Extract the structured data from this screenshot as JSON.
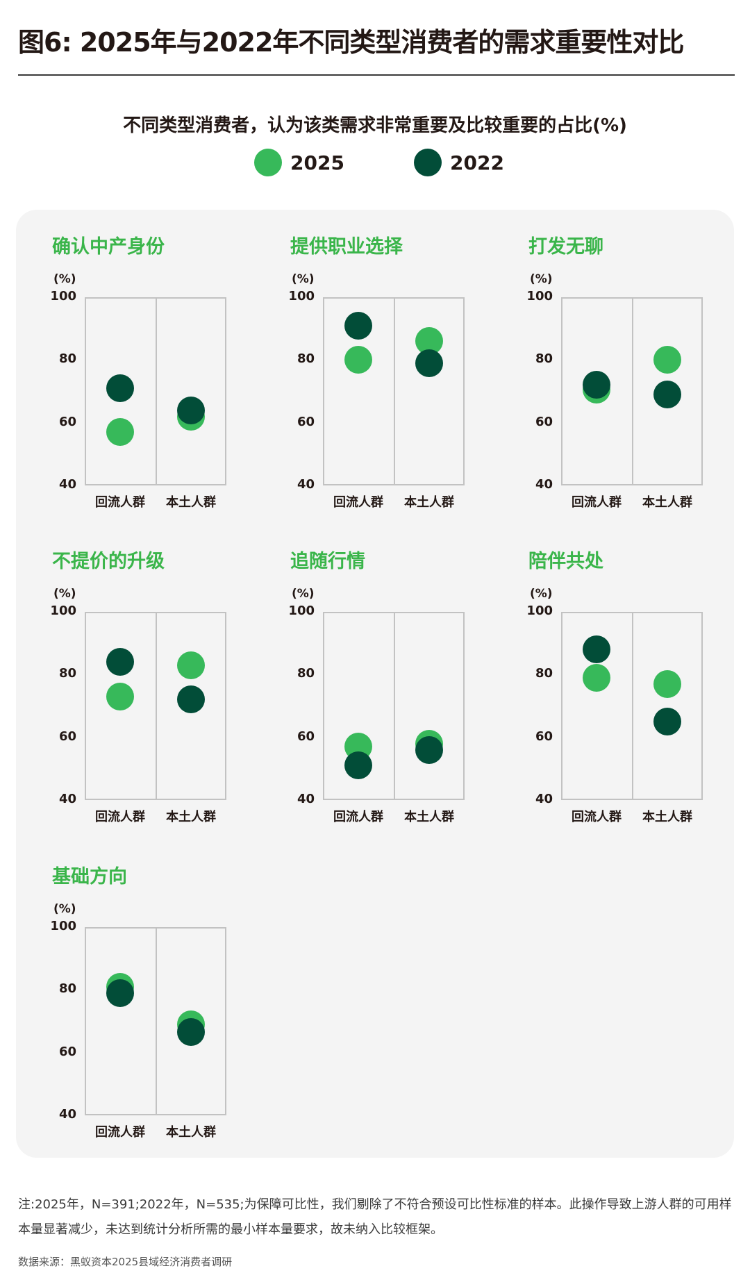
{
  "header": {
    "title": "图6: 2025年与2022年不同类型消费者的需求重要性对比",
    "subtitle": "不同类型消费者，认为该类需求非常重要及比较重要的占比(%)"
  },
  "colors": {
    "2025": "#37b95a",
    "2022": "#024d38",
    "panel_title": "#3ab54a",
    "panel_bg": "#f4f4f4"
  },
  "chart_data": {
    "type": "scatter",
    "legend": [
      {
        "name": "2025",
        "color": "#37b95a"
      },
      {
        "name": "2022",
        "color": "#024d38"
      }
    ],
    "legend_placement": "top-center",
    "unit_label": "(%)",
    "ylim": [
      40,
      100
    ],
    "yticks": [
      "100",
      "80",
      "60",
      "40"
    ],
    "categories": [
      "回流人群",
      "本土人群"
    ],
    "panels": [
      {
        "title": "确认中产身份",
        "series": [
          {
            "name": "2025",
            "values": [
              57,
              62
            ]
          },
          {
            "name": "2022",
            "values": [
              71,
              64
            ]
          }
        ]
      },
      {
        "title": "提供职业选择",
        "series": [
          {
            "name": "2025",
            "values": [
              80,
              86
            ]
          },
          {
            "name": "2022",
            "values": [
              91,
              79
            ]
          }
        ]
      },
      {
        "title": "打发无聊",
        "series": [
          {
            "name": "2025",
            "values": [
              70.5,
              80
            ]
          },
          {
            "name": "2022",
            "values": [
              72,
              69
            ]
          }
        ]
      },
      {
        "title": "不提价的升级",
        "series": [
          {
            "name": "2025",
            "values": [
              73,
              83
            ]
          },
          {
            "name": "2022",
            "values": [
              84,
              72
            ]
          }
        ]
      },
      {
        "title": "追随行情",
        "series": [
          {
            "name": "2025",
            "values": [
              57,
              58
            ]
          },
          {
            "name": "2022",
            "values": [
              51,
              56
            ]
          }
        ]
      },
      {
        "title": "陪伴共处",
        "series": [
          {
            "name": "2025",
            "values": [
              79,
              77
            ]
          },
          {
            "name": "2022",
            "values": [
              88,
              65
            ]
          }
        ]
      },
      {
        "title": "基础方向",
        "series": [
          {
            "name": "2025",
            "values": [
              81,
              69
            ]
          },
          {
            "name": "2022",
            "values": [
              79,
              66.5
            ]
          }
        ]
      }
    ]
  },
  "footer": {
    "note": "注:2025年，N=391;2022年，N=535;为保障可比性，我们剔除了不符合预设可比性标准的样本。此操作导致上游人群的可用样本量显著减少，未达到统计分析所需的最小样本量要求，故未纳入比较框架。",
    "source": "数据来源：黑蚁资本2025县域经济消费者调研"
  }
}
